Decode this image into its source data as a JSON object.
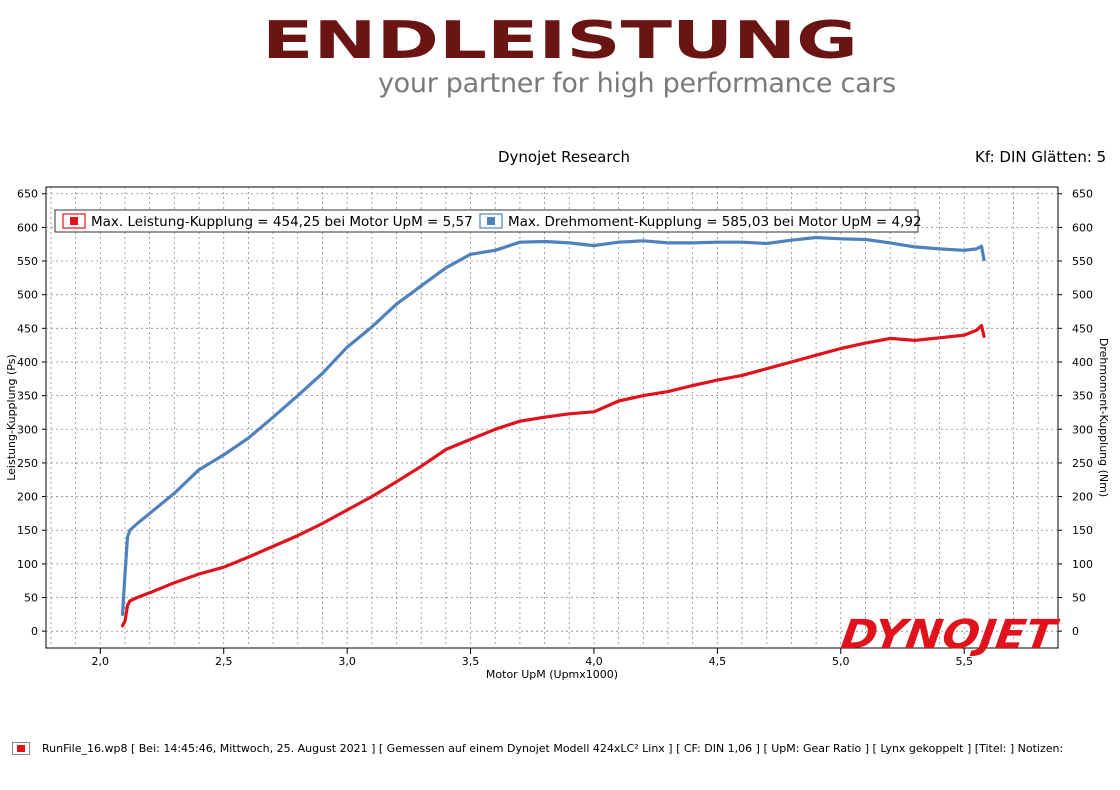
{
  "brand": {
    "name": "ENDLEISTUNG",
    "slogan": "your partner for high performance cars",
    "name_color": "#6b1414"
  },
  "chart_data": {
    "type": "line",
    "title": "Dynojet Research",
    "subtitle": "Kf: DIN Glätten: 5",
    "xlabel": "Motor UpM (Upmx1000)",
    "ylabel_left": "Leistung-Kupplung (Ps)",
    "ylabel_right": "Drehmoment-Kupplung (Nm)",
    "xlim": [
      1.78,
      5.88
    ],
    "ylim": [
      -25,
      660
    ],
    "x_ticks": [
      "2,0",
      "2,5",
      "3,0",
      "3,5",
      "4,0",
      "4,5",
      "5,0",
      "5,5"
    ],
    "y_ticks": [
      "0",
      "50",
      "100",
      "150",
      "200",
      "250",
      "300",
      "350",
      "400",
      "450",
      "500",
      "550",
      "600",
      "650"
    ],
    "grid": true,
    "legend_position": "top",
    "watermark": "DYNOJET",
    "series": [
      {
        "name": "Max. Leistung-Kupplung = 454,25 bei Motor UpM = 5,57",
        "axis": "left",
        "color": "#e0121b",
        "x": [
          2.09,
          2.1,
          2.11,
          2.12,
          2.15,
          2.2,
          2.3,
          2.4,
          2.5,
          2.6,
          2.7,
          2.8,
          2.9,
          3.0,
          3.1,
          3.2,
          3.3,
          3.4,
          3.5,
          3.6,
          3.7,
          3.8,
          3.9,
          4.0,
          4.1,
          4.2,
          4.3,
          4.4,
          4.5,
          4.6,
          4.7,
          4.8,
          4.9,
          5.0,
          5.1,
          5.2,
          5.3,
          5.4,
          5.5,
          5.55,
          5.57,
          5.58
        ],
        "y": [
          8,
          15,
          38,
          45,
          50,
          57,
          72,
          85,
          95,
          110,
          126,
          142,
          160,
          180,
          200,
          222,
          245,
          270,
          285,
          300,
          312,
          318,
          323,
          326,
          342,
          350,
          356,
          365,
          373,
          380,
          390,
          400,
          410,
          420,
          428,
          435,
          432,
          436,
          440,
          447,
          454,
          438
        ]
      },
      {
        "name": "Max. Drehmoment-Kupplung = 585,03 bei Motor UpM = 4,92",
        "axis": "right",
        "color": "#4f81bd",
        "x": [
          2.09,
          2.1,
          2.11,
          2.12,
          2.15,
          2.2,
          2.3,
          2.4,
          2.5,
          2.6,
          2.7,
          2.8,
          2.9,
          3.0,
          3.1,
          3.2,
          3.3,
          3.4,
          3.5,
          3.6,
          3.7,
          3.8,
          3.9,
          4.0,
          4.1,
          4.2,
          4.3,
          4.4,
          4.5,
          4.6,
          4.7,
          4.8,
          4.9,
          5.0,
          5.1,
          5.2,
          5.3,
          5.4,
          5.5,
          5.55,
          5.57,
          5.58
        ],
        "y": [
          25,
          85,
          140,
          150,
          160,
          175,
          205,
          240,
          262,
          287,
          318,
          350,
          383,
          422,
          452,
          486,
          513,
          540,
          560,
          566,
          578,
          579,
          577,
          573,
          578,
          580,
          577,
          577,
          578,
          578,
          576,
          581,
          585,
          583,
          582,
          577,
          571,
          568,
          566,
          568,
          572,
          552
        ]
      }
    ]
  },
  "footer": {
    "text": "RunFile_16.wp8 [ Bei: 14:45:46, Mittwoch, 25. August 2021 ] [ Gemessen auf einem Dynojet Modell 424xLC² Linx ] [ CF: DIN 1,06 ] [ UpM: Gear Ratio ] [ Lynx gekoppelt ] [Titel: ]  Notizen:"
  }
}
